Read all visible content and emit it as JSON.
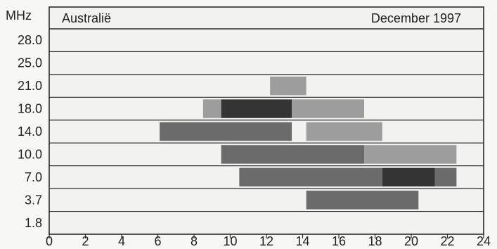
{
  "chart_data": {
    "type": "timeline-bar",
    "title_left": "Australië",
    "title_right": "December 1997",
    "ylabel": "MHz",
    "xlabel": "",
    "y_categories": [
      "28.0",
      "25.0",
      "21.0",
      "18.0",
      "14.0",
      "10.0",
      "7.0",
      "3.7",
      "1.8"
    ],
    "x_ticks": [
      0,
      2,
      4,
      6,
      8,
      10,
      12,
      14,
      16,
      18,
      20,
      22,
      24
    ],
    "xlim": [
      0,
      24
    ],
    "grid": true,
    "colors": {
      "light": "#9d9d9d",
      "medium": "#6b6b6b",
      "dark": "#343434",
      "axis": "#2a2a2a",
      "background": "#f2f2f0"
    },
    "segments": [
      {
        "frequency": "21.0",
        "start": 12.2,
        "end": 14.2,
        "level": "light"
      },
      {
        "frequency": "18.0",
        "start": 8.5,
        "end": 9.5,
        "level": "light"
      },
      {
        "frequency": "18.0",
        "start": 9.5,
        "end": 13.4,
        "level": "dark"
      },
      {
        "frequency": "18.0",
        "start": 13.4,
        "end": 17.4,
        "level": "light"
      },
      {
        "frequency": "14.0",
        "start": 6.1,
        "end": 13.4,
        "level": "medium"
      },
      {
        "frequency": "14.0",
        "start": 14.2,
        "end": 18.4,
        "level": "light"
      },
      {
        "frequency": "10.0",
        "start": 9.5,
        "end": 17.4,
        "level": "medium"
      },
      {
        "frequency": "10.0",
        "start": 17.4,
        "end": 22.5,
        "level": "light"
      },
      {
        "frequency": "7.0",
        "start": 10.5,
        "end": 18.4,
        "level": "medium"
      },
      {
        "frequency": "7.0",
        "start": 18.4,
        "end": 21.3,
        "level": "dark"
      },
      {
        "frequency": "7.0",
        "start": 21.3,
        "end": 22.5,
        "level": "medium"
      },
      {
        "frequency": "3.7",
        "start": 14.2,
        "end": 20.4,
        "level": "medium"
      }
    ]
  }
}
